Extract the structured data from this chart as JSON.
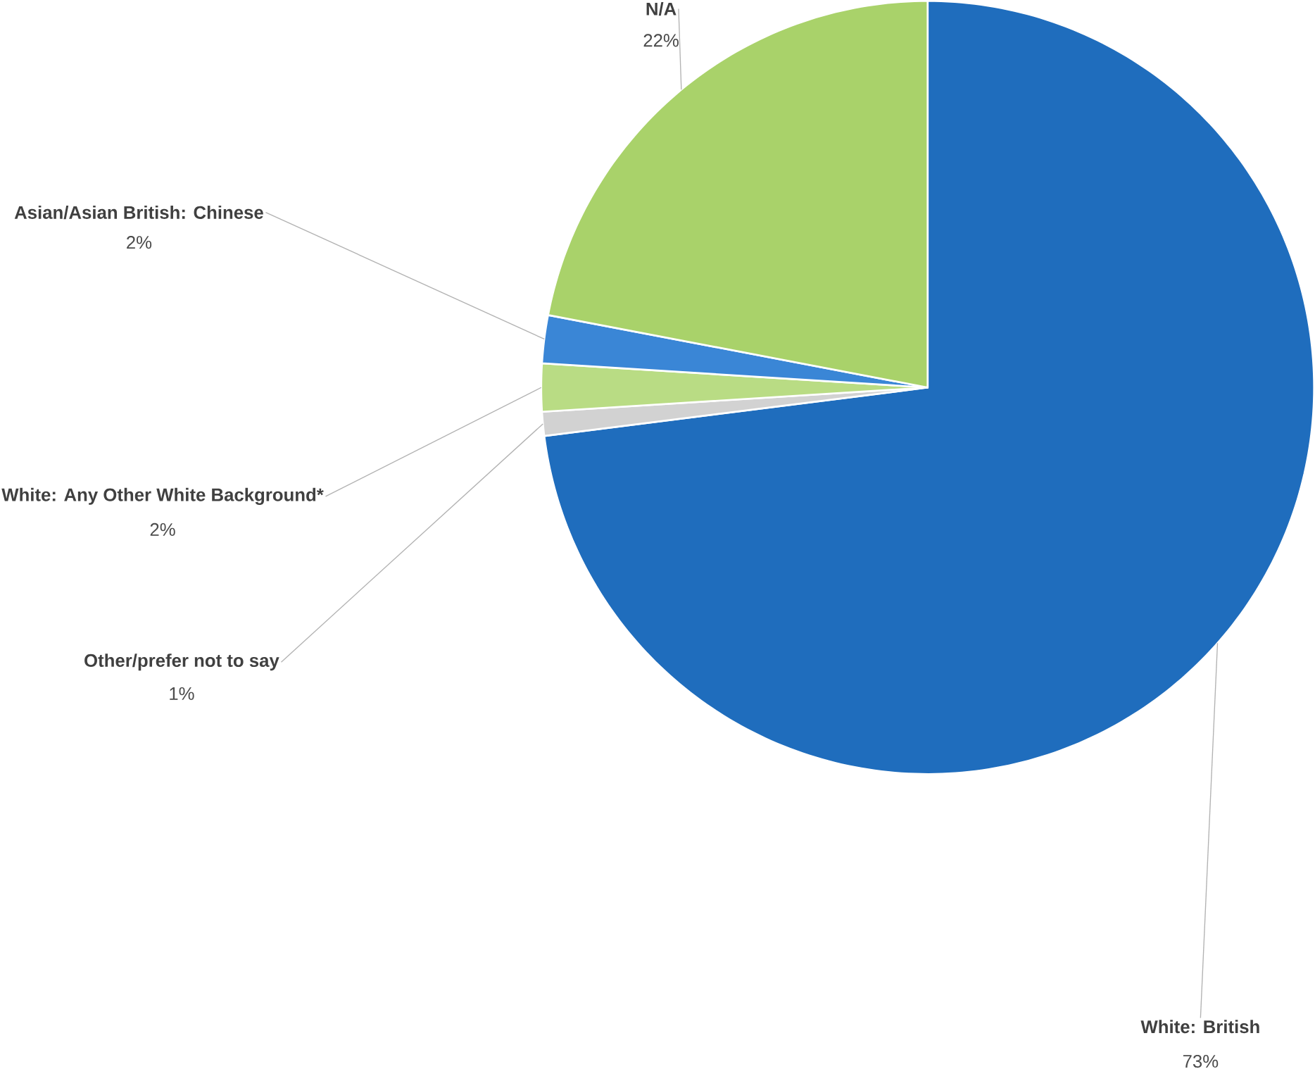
{
  "chart_data": {
    "type": "pie",
    "categories": [
      "White: British",
      "Other/prefer not to say",
      "White: Any Other White Background*",
      "Asian/Asian British: Chinese",
      "N/A"
    ],
    "values": [
      73,
      1,
      2,
      2,
      22
    ],
    "value_labels": [
      "73%",
      "1%",
      "2%",
      "2%",
      "22%"
    ],
    "colors": [
      "#1f6dbd",
      "#d2d2d2",
      "#b9dc84",
      "#3a86d6",
      "#a9d26a"
    ]
  }
}
